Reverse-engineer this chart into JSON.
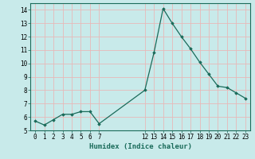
{
  "x": [
    0,
    1,
    2,
    3,
    4,
    5,
    6,
    7,
    12,
    13,
    14,
    15,
    16,
    17,
    18,
    19,
    20,
    21,
    22,
    23
  ],
  "y": [
    5.7,
    5.4,
    5.8,
    6.2,
    6.2,
    6.4,
    6.4,
    5.5,
    8.0,
    10.8,
    14.1,
    13.0,
    12.0,
    11.1,
    10.1,
    9.2,
    8.3,
    8.2,
    7.8,
    7.4
  ],
  "line_color": "#1a6b5a",
  "marker": "D",
  "marker_size": 1.8,
  "line_width": 0.9,
  "xlabel": "Humidex (Indice chaleur)",
  "xlim": [
    -0.5,
    23.5
  ],
  "ylim": [
    5,
    14.5
  ],
  "yticks": [
    5,
    6,
    7,
    8,
    9,
    10,
    11,
    12,
    13,
    14
  ],
  "xticks": [
    0,
    1,
    2,
    3,
    4,
    5,
    6,
    7,
    12,
    13,
    14,
    15,
    16,
    17,
    18,
    19,
    20,
    21,
    22,
    23
  ],
  "background_color": "#c8eaea",
  "grid_color": "#e8b8b8",
  "tick_fontsize": 5.5,
  "xlabel_fontsize": 6.5
}
